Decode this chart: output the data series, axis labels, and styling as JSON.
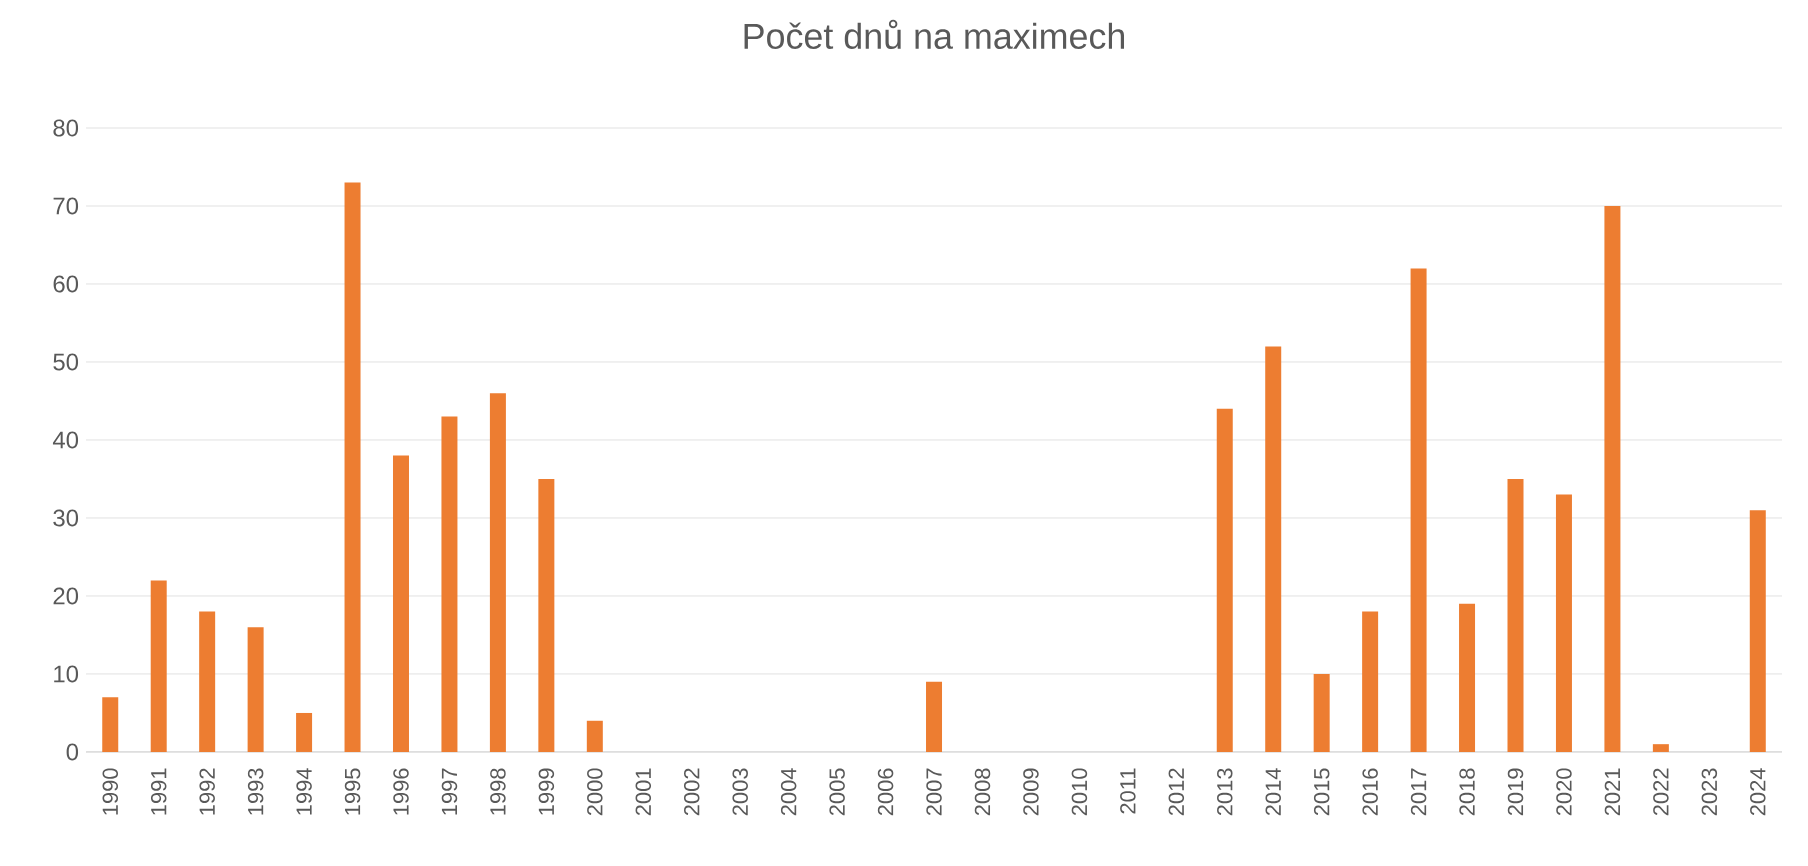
{
  "chart_data": {
    "type": "bar",
    "title": "Počet dnů na maximech",
    "categories": [
      "1990",
      "1991",
      "1992",
      "1993",
      "1994",
      "1995",
      "1996",
      "1997",
      "1998",
      "1999",
      "2000",
      "2001",
      "2002",
      "2003",
      "2004",
      "2005",
      "2006",
      "2007",
      "2008",
      "2009",
      "2010",
      "2011",
      "2012",
      "2013",
      "2014",
      "2015",
      "2016",
      "2017",
      "2018",
      "2019",
      "2020",
      "2021",
      "2022",
      "2023",
      "2024"
    ],
    "values": [
      7,
      22,
      18,
      16,
      5,
      73,
      38,
      43,
      46,
      35,
      4,
      0,
      0,
      0,
      0,
      0,
      0,
      9,
      0,
      0,
      0,
      0,
      0,
      44,
      52,
      10,
      18,
      62,
      19,
      35,
      33,
      70,
      1,
      0,
      31
    ],
    "color": "#ed7d31",
    "ylim": [
      0,
      80
    ],
    "yticks": [
      0,
      10,
      20,
      30,
      40,
      50,
      60,
      70,
      80
    ],
    "grid": "y"
  }
}
